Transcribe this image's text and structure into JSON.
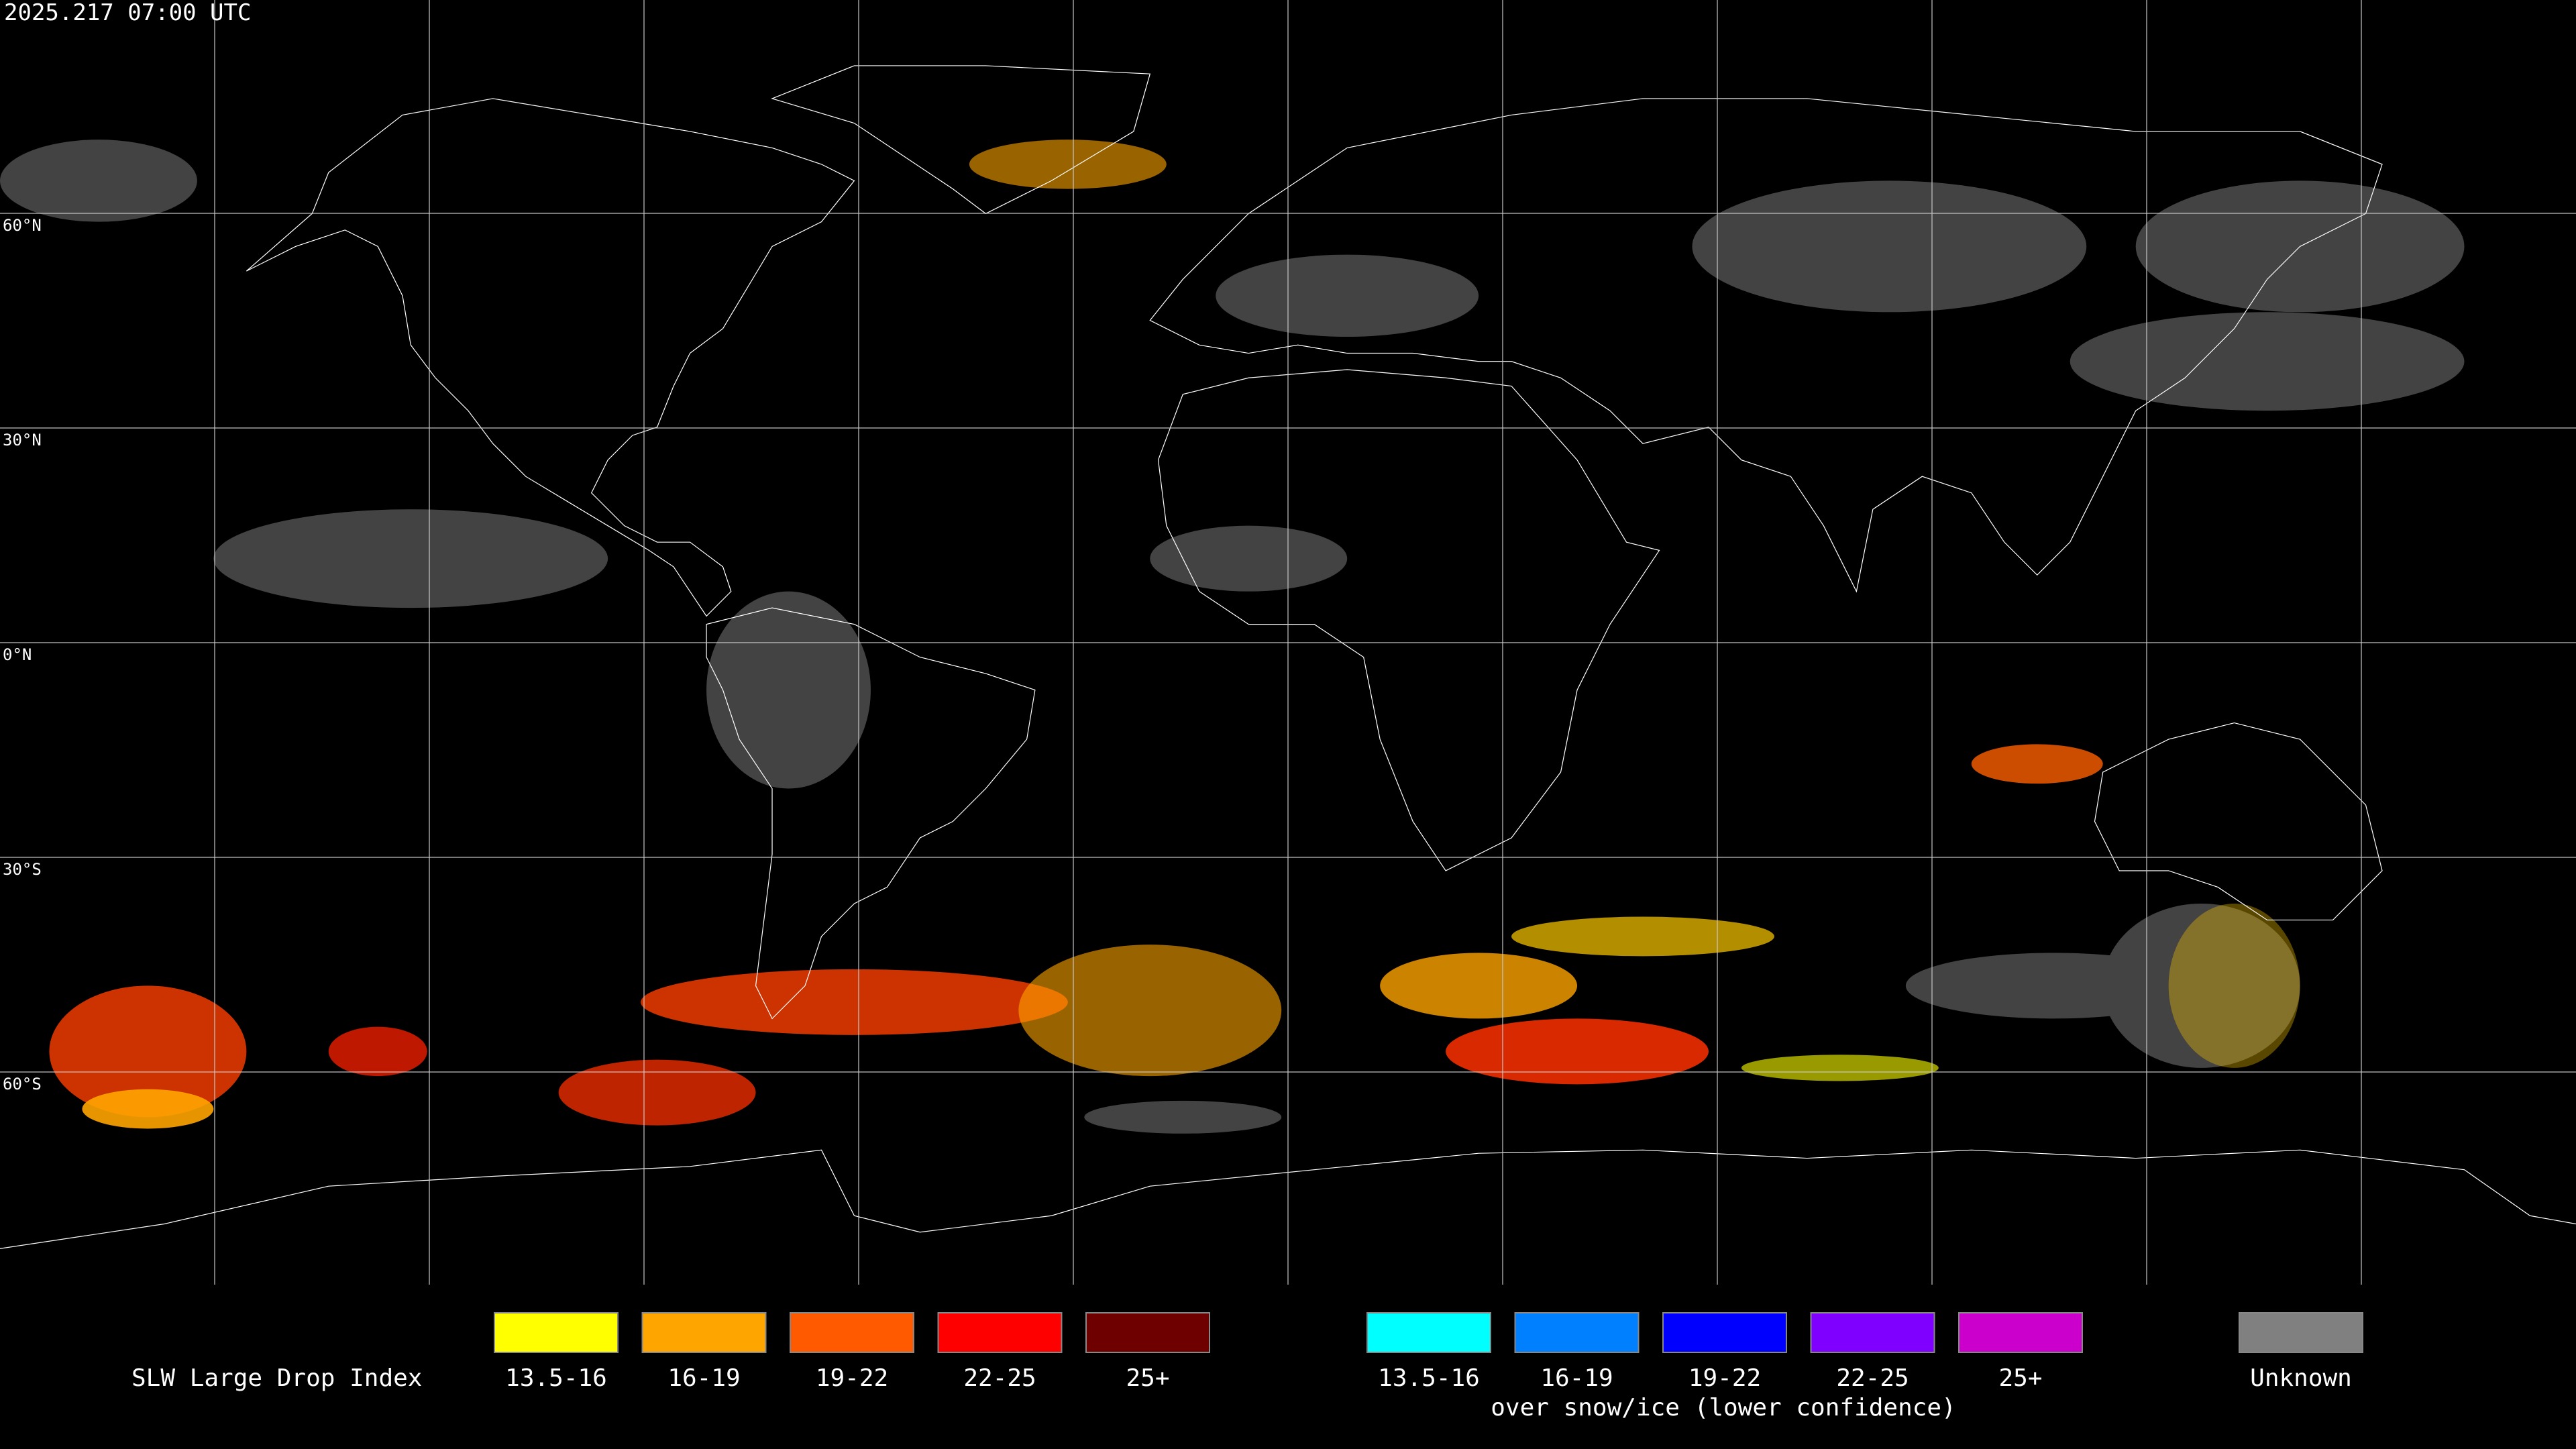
{
  "header": {
    "timestamp": "2025.217 07:00 UTC"
  },
  "map": {
    "lat_labels": [
      "60°N",
      "30°N",
      "0°N",
      "30°S",
      "60°S"
    ]
  },
  "legend": {
    "title": "SLW Large Drop Index",
    "groups": [
      {
        "items": [
          {
            "label": "13.5-16",
            "color": "#ffff00"
          },
          {
            "label": "16-19",
            "color": "#ffa500"
          },
          {
            "label": "19-22",
            "color": "#ff5a00"
          },
          {
            "label": "22-25",
            "color": "#ff0000"
          },
          {
            "label": "25+",
            "color": "#6e0000"
          }
        ]
      },
      {
        "items": [
          {
            "label": "13.5-16",
            "color": "#00ffff"
          },
          {
            "label": "16-19",
            "color": "#0080ff"
          },
          {
            "label": "19-22",
            "color": "#0000ff"
          },
          {
            "label": "22-25",
            "color": "#8000ff"
          },
          {
            "label": "25+",
            "color": "#cc00cc"
          }
        ],
        "caption": "over snow/ice (lower confidence)"
      }
    ],
    "unknown": {
      "label": "Unknown",
      "color": "#808080"
    }
  }
}
